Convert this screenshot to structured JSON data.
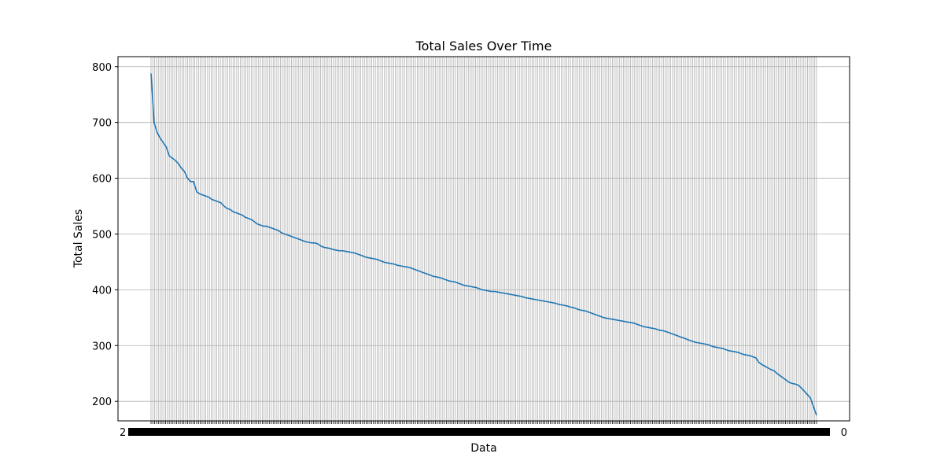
{
  "chart_data": {
    "type": "line",
    "title": "Total Sales Over Time",
    "xlabel": "Data",
    "ylabel": "Total Sales",
    "ylim": [
      165,
      818
    ],
    "yticks": [
      200,
      300,
      400,
      500,
      600,
      700,
      800
    ],
    "grid": true,
    "x_tick_count": 366,
    "x_tick_note": "dense overlapping date labels (unreadable)",
    "x_tick_labels_visible": {
      "first": "2",
      "last": "0"
    },
    "series": [
      {
        "color": "#1f77b4",
        "values": [
          788,
          700,
          682,
          672,
          664,
          656,
          640,
          636,
          632,
          626,
          618,
          612,
          600,
          594,
          594,
          576,
          572,
          570,
          568,
          566,
          562,
          560,
          558,
          556,
          550,
          546,
          544,
          540,
          538,
          536,
          534,
          530,
          528,
          526,
          522,
          518,
          516,
          514,
          514,
          512,
          510,
          508,
          506,
          502,
          500,
          498,
          496,
          494,
          492,
          490,
          488,
          486,
          485,
          484,
          484,
          482,
          478,
          476,
          475,
          474,
          472,
          471,
          470,
          470,
          469,
          468,
          467,
          466,
          464,
          462,
          460,
          458,
          457,
          456,
          455,
          453,
          451,
          449,
          448,
          447,
          446,
          444,
          443,
          442,
          441,
          440,
          438,
          436,
          434,
          432,
          430,
          428,
          426,
          424,
          423,
          422,
          420,
          418,
          416,
          415,
          414,
          412,
          410,
          408,
          407,
          406,
          405,
          404,
          402,
          400,
          399,
          398,
          397,
          397,
          396,
          395,
          394,
          393,
          392,
          391,
          390,
          389,
          388,
          386,
          385,
          384,
          383,
          382,
          381,
          380,
          379,
          378,
          377,
          376,
          374,
          373,
          372,
          371,
          369,
          368,
          366,
          364,
          363,
          362,
          360,
          358,
          356,
          354,
          352,
          350,
          349,
          348,
          347,
          346,
          345,
          344,
          343,
          342,
          341,
          340,
          338,
          336,
          334,
          333,
          332,
          331,
          330,
          328,
          327,
          326,
          324,
          322,
          320,
          318,
          316,
          314,
          312,
          310,
          308,
          306,
          305,
          304,
          303,
          302,
          300,
          298,
          297,
          296,
          295,
          293,
          291,
          290,
          289,
          288,
          286,
          284,
          283,
          282,
          280,
          278,
          270,
          266,
          263,
          260,
          257,
          255,
          250,
          246,
          242,
          238,
          234,
          232,
          231,
          229,
          224,
          218,
          212,
          206,
          190,
          175
        ]
      }
    ]
  }
}
